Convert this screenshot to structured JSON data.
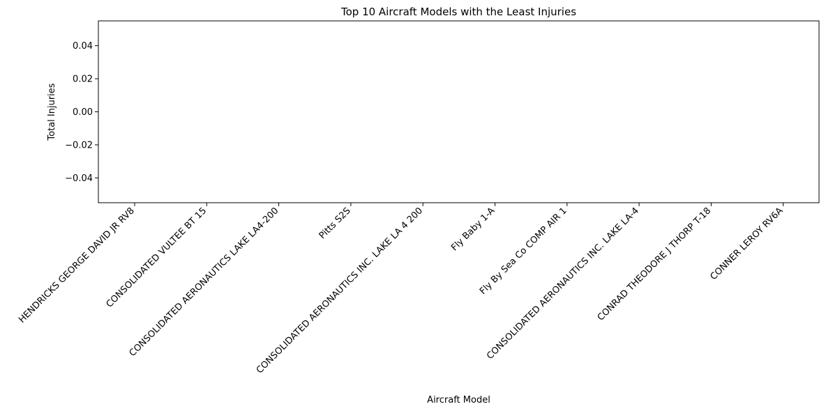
{
  "chart_data": {
    "type": "bar",
    "title": "Top 10 Aircraft Models with the Least Injuries",
    "xlabel": "Aircraft Model",
    "ylabel": "Total Injuries",
    "categories": [
      "HENDRICKS GEORGE DAVID JR RV8",
      "CONSOLIDATED VULTEE BT 15",
      "CONSOLIDATED AERONAUTICS LAKE LA4-200",
      "Pitts S2S",
      "CONSOLIDATED AERONAUTICS INC. LAKE LA 4 200",
      "Fly Baby 1-A",
      "Fly By Sea Co COMP AIR 1",
      "CONSOLIDATED  AERONAUTICS INC. LAKE LA-4",
      "CONRAD THEODORE J THORP T-18",
      "CONNER LEROY RV6A"
    ],
    "values": [
      0,
      0,
      0,
      0,
      0,
      0,
      0,
      0,
      0,
      0
    ],
    "ylim": [
      -0.055,
      0.055
    ],
    "yticks": [
      "−0.04",
      "−0.02",
      "0.00",
      "0.02",
      "0.04"
    ],
    "grid": false,
    "bar_color": "#1f77b4"
  }
}
